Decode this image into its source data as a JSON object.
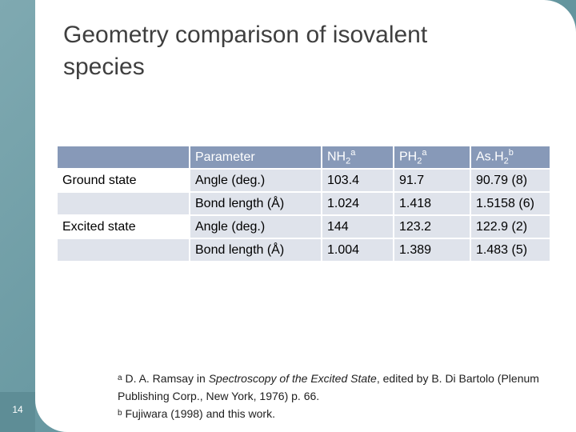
{
  "title": "Geometry comparison of isovalent species",
  "slide_number": "14",
  "table": {
    "header": {
      "parameter": "Parameter",
      "col1_base": "NH",
      "col1_sub": "2",
      "col1_sup": "a",
      "col2_base": "PH",
      "col2_sub": "2",
      "col2_sup": "a",
      "col3_base": "As.H",
      "col3_sub": "2",
      "col3_sup": "b"
    },
    "rows": [
      {
        "state": "Ground state",
        "parameter": "Angle (deg.)",
        "nh2": "103.4",
        "ph2": "91.7",
        "ash2": "90.79 (8)"
      },
      {
        "state": "",
        "parameter": "Bond length (Å)",
        "nh2": "1.024",
        "ph2": "1.418",
        "ash2": "1.5158 (6)"
      },
      {
        "state": "Excited state",
        "parameter": "Angle (deg.)",
        "nh2": "144",
        "ph2": "123.2",
        "ash2": "122.9 (2)"
      },
      {
        "state": "",
        "parameter": "Bond length (Å)",
        "nh2": "1.004",
        "ph2": "1.389",
        "ash2": "1.483 (5)"
      }
    ]
  },
  "footnotes": {
    "a_mark": "a",
    "a_text_1": " D. A. Ramsay in ",
    "a_italic": "Spectroscopy of the Excited State",
    "a_text_2": ", edited by B. Di Bartolo (Plenum Publishing Corp., New York, 1976) p. 66.",
    "b_mark": "b",
    "b_text": " Fujiwara (1998) and this work."
  }
}
